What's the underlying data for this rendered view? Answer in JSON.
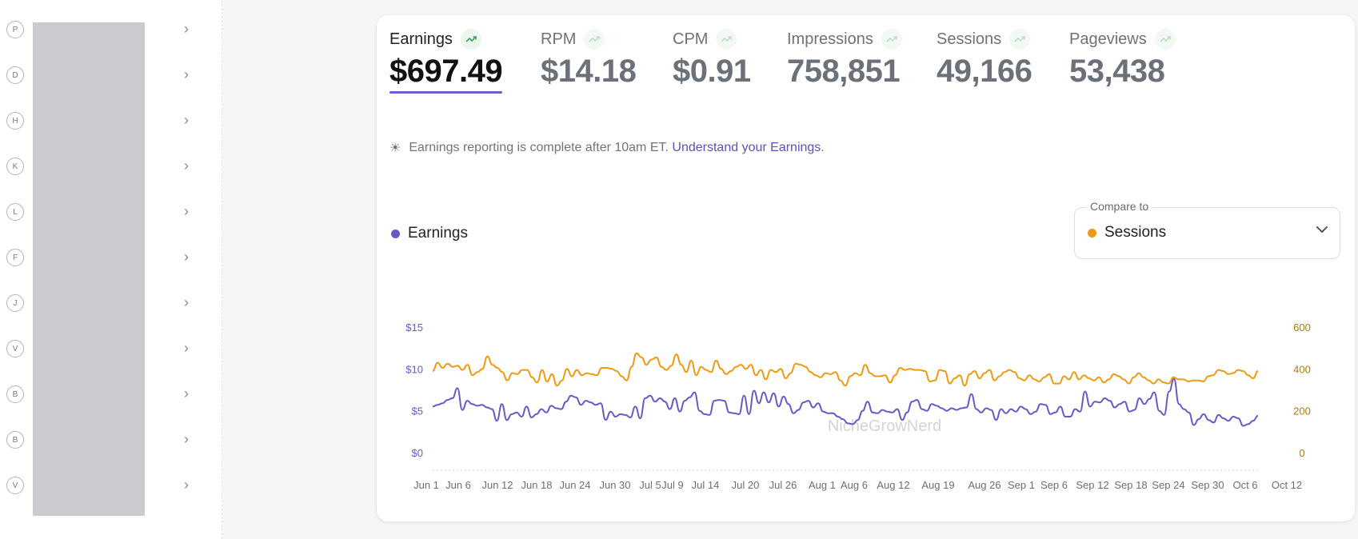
{
  "sidebar": {
    "items": [
      {
        "letter": "P"
      },
      {
        "letter": "D"
      },
      {
        "letter": "H"
      },
      {
        "letter": "K"
      },
      {
        "letter": "L"
      },
      {
        "letter": "F"
      },
      {
        "letter": "J"
      },
      {
        "letter": "V"
      },
      {
        "letter": "B"
      },
      {
        "letter": "B"
      },
      {
        "letter": "V"
      }
    ],
    "chevron": "›"
  },
  "metrics": [
    {
      "label": "Earnings",
      "value": "$697.49",
      "active": true
    },
    {
      "label": "RPM",
      "value": "$14.18",
      "active": false
    },
    {
      "label": "CPM",
      "value": "$0.91",
      "active": false
    },
    {
      "label": "Impressions",
      "value": "758,851",
      "active": false
    },
    {
      "label": "Sessions",
      "value": "49,166",
      "active": false
    },
    {
      "label": "Pageviews",
      "value": "53,438",
      "active": false
    }
  ],
  "notice": {
    "icon": "sun-icon",
    "text": "Earnings reporting is complete after 10am ET.",
    "link": "Understand your Earnings",
    "period": "."
  },
  "legend": {
    "label": "Earnings"
  },
  "compare": {
    "label": "Compare to",
    "value": "Sessions"
  },
  "colors": {
    "earnings": "#6a58c9",
    "sessions": "#f09a12",
    "accent": "#6f5fc9",
    "trend": "#3aa05a"
  },
  "chart_data": {
    "type": "line",
    "x_tick_labels": [
      "Jun 1",
      "Jun 6",
      "Jun 12",
      "Jun 18",
      "Jun 24",
      "Jun 30",
      "Jul 5",
      "Jul 9",
      "Jul 14",
      "Jul 20",
      "Jul 26",
      "Aug 1",
      "Aug 6",
      "Aug 12",
      "Aug 19",
      "Aug 26",
      "Sep 1",
      "Sep 6",
      "Sep 12",
      "Sep 18",
      "Sep 24",
      "Sep 30",
      "Oct 6",
      "Oct 12"
    ],
    "y_left": {
      "ticks": [
        "$0",
        "$5",
        "$10",
        "$15"
      ],
      "range": [
        0,
        15
      ]
    },
    "y_right": {
      "ticks": [
        "0",
        "200",
        "400",
        "600"
      ],
      "range": [
        0,
        600
      ]
    },
    "watermark": "NicheGrowNerd",
    "series": [
      {
        "name": "Earnings",
        "axis": "left",
        "values": [
          5.5,
          5.7,
          5.9,
          6.3,
          6.5,
          7.7,
          5.1,
          6.2,
          5.8,
          5.6,
          5.7,
          5.4,
          5.2,
          3.8,
          5.8,
          3.9,
          4.6,
          4.8,
          4.3,
          5.5,
          4.2,
          4.6,
          5.2,
          4.8,
          5.6,
          5.3,
          5.2,
          6.1,
          6.8,
          6.6,
          5.7,
          6.2,
          6.0,
          5.7,
          5.9,
          3.9,
          4.9,
          4.3,
          4.6,
          4.5,
          4.2,
          5.5,
          4.1,
          6.5,
          6.8,
          6.1,
          6.5,
          6.1,
          5.2,
          6.5,
          4.9,
          6.2,
          6.6,
          7.2,
          5.0,
          4.6,
          4.5,
          6.2,
          6.3,
          6.2,
          4.8,
          4.7,
          4.6,
          6.8,
          4.6,
          7.4,
          5.9,
          7.2,
          6.0,
          7.1,
          5.5,
          6.7,
          5.8,
          4.7,
          5.1,
          6.0,
          6.2,
          5.4,
          5.9,
          4.9,
          4.7,
          4.7,
          4.3,
          4.0,
          3.5,
          3.4,
          3.9,
          5.0,
          6.1,
          4.8,
          4.7,
          5.1,
          4.9,
          4.8,
          5.2,
          3.9,
          4.8,
          6.1,
          6.3,
          5.2,
          5.0,
          5.8,
          5.6,
          5.3,
          5.0,
          5.3,
          5.1,
          5.3,
          5.4,
          7.0,
          5.2,
          4.8,
          5.3,
          5.1,
          3.9,
          5.2,
          4.7,
          5.2,
          4.9,
          5.5,
          5.2,
          4.6,
          4.9,
          5.8,
          5.7,
          4.6,
          4.8,
          5.5,
          4.3,
          4.3,
          5.2,
          4.9,
          7.3,
          5.5,
          6.1,
          6.0,
          6.5,
          6.2,
          5.4,
          5.8,
          6.1,
          4.9,
          5.1,
          6.5,
          5.8,
          6.4,
          7.2,
          5.0,
          4.5,
          7.3,
          8.8,
          5.8,
          5.2,
          4.8,
          3.3,
          4.0,
          4.6,
          3.9,
          3.6,
          4.5,
          4.1,
          3.8,
          4.3,
          4.1,
          3.2,
          3.4,
          3.8,
          4.4
        ]
      },
      {
        "name": "Sessions",
        "axis": "right",
        "values": [
          390,
          430,
          405,
          425,
          410,
          415,
          395,
          420,
          370,
          385,
          400,
          460,
          420,
          405,
          385,
          345,
          380,
          375,
          395,
          395,
          360,
          335,
          395,
          340,
          375,
          320,
          345,
          400,
          365,
          395,
          370,
          380,
          375,
          370,
          405,
          405,
          400,
          390,
          365,
          345,
          410,
          475,
          455,
          420,
          445,
          455,
          410,
          395,
          415,
          470,
          420,
          385,
          440,
          370,
          410,
          395,
          385,
          440,
          400,
          375,
          390,
          410,
          420,
          400,
          420,
          370,
          395,
          350,
          395,
          385,
          400,
          355,
          380,
          425,
          420,
          410,
          385,
          370,
          360,
          380,
          375,
          385,
          345,
          320,
          365,
          380,
          370,
          420,
          380,
          365,
          365,
          370,
          335,
          370,
          405,
          395,
          400,
          395,
          395,
          390,
          340,
          345,
          395,
          390,
          330,
          355,
          370,
          320,
          375,
          390,
          355,
          380,
          395,
          345,
          365,
          385,
          395,
          385,
          355,
          345,
          370,
          350,
          340,
          360,
          375,
          330,
          330,
          365,
          350,
          385,
          350,
          370,
          355,
          345,
          360,
          335,
          350,
          375,
          365,
          350,
          330,
          360,
          380,
          360,
          345,
          330,
          350,
          335,
          330,
          360,
          350,
          350,
          340,
          345,
          345,
          340,
          365,
          370,
          395,
          390,
          375,
          380,
          395,
          390,
          370,
          355,
          390
        ]
      }
    ]
  }
}
